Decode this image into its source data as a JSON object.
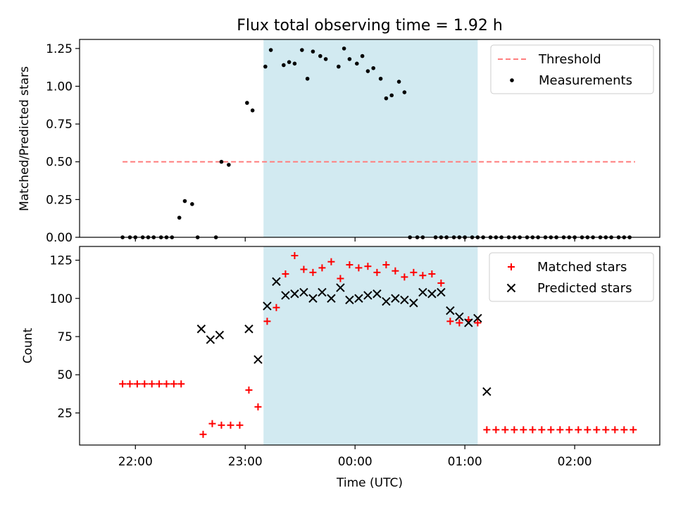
{
  "title": "Flux total observing time = 1.92 h",
  "colors": {
    "threshold": "#ff7f7f",
    "measurement": "#000000",
    "matched": "#ff0000",
    "predicted": "#000000",
    "observing_window": "#add8e6"
  },
  "chart_data": [
    {
      "type": "scatter",
      "ylabel": "Matched/Predicted stars",
      "ylim": [
        0,
        1.31
      ],
      "yticks": [
        0.0,
        0.25,
        0.5,
        0.75,
        1.0,
        1.25
      ],
      "ytick_labels": [
        "0.00",
        "0.25",
        "0.50",
        "0.75",
        "1.00",
        "1.25"
      ],
      "legend_position": "upper right",
      "shaded_x": [
        "23:10",
        "01:07"
      ],
      "threshold": {
        "name": "Threshold",
        "y": 0.5,
        "x": [
          "21:53",
          "02:33"
        ]
      },
      "series": [
        {
          "name": "Measurements",
          "marker": "dot",
          "x": [
            "21:53",
            "21:57",
            "22:00",
            "22:04",
            "22:07",
            "22:10",
            "22:14",
            "22:17",
            "22:20",
            "22:24",
            "22:27",
            "22:31",
            "22:34",
            "22:44",
            "22:47",
            "22:51",
            "23:01",
            "23:04",
            "23:11",
            "23:14",
            "23:21",
            "23:24",
            "23:27",
            "23:31",
            "23:34",
            "23:37",
            "23:41",
            "23:44",
            "23:51",
            "23:54",
            "23:57",
            "00:01",
            "00:04",
            "00:07",
            "00:10",
            "00:14",
            "00:17",
            "00:20",
            "00:24",
            "00:27",
            "00:30",
            "00:34",
            "00:37",
            "00:44",
            "00:47",
            "00:50",
            "00:54",
            "00:57",
            "01:00",
            "01:04",
            "01:07",
            "01:10",
            "01:14",
            "01:17",
            "01:20",
            "01:24",
            "01:27",
            "01:30",
            "01:34",
            "01:37",
            "01:40",
            "01:44",
            "01:47",
            "01:50",
            "01:54",
            "01:57",
            "02:00",
            "02:04",
            "02:07",
            "02:10",
            "02:14",
            "02:17",
            "02:20",
            "02:24",
            "02:27",
            "02:30"
          ],
          "y": [
            0,
            0,
            0,
            0,
            0,
            0,
            0,
            0,
            0,
            0.13,
            0.24,
            0.22,
            0,
            0,
            0.5,
            0.48,
            0.89,
            0.84,
            1.13,
            1.24,
            1.14,
            1.16,
            1.15,
            1.24,
            1.05,
            1.23,
            1.2,
            1.18,
            1.13,
            1.25,
            1.18,
            1.15,
            1.2,
            1.1,
            1.12,
            1.05,
            0.92,
            0.94,
            1.03,
            0.96,
            0,
            0,
            0,
            0,
            0,
            0,
            0,
            0,
            0,
            0,
            0,
            0,
            0,
            0,
            0,
            0,
            0,
            0,
            0,
            0,
            0,
            0,
            0,
            0,
            0,
            0,
            0,
            0,
            0,
            0,
            0,
            0,
            0,
            0,
            0,
            0
          ]
        }
      ]
    },
    {
      "type": "scatter",
      "xlabel": "Time (UTC)",
      "ylabel": "Count",
      "ylim": [
        4,
        134
      ],
      "yticks": [
        25,
        50,
        75,
        100,
        125
      ],
      "ytick_labels": [
        "25",
        "50",
        "75",
        "100",
        "125"
      ],
      "xticks": [
        "22:00",
        "23:00",
        "00:00",
        "01:00",
        "02:00"
      ],
      "legend_position": "upper right",
      "shaded_x": [
        "23:10",
        "01:07"
      ],
      "series": [
        {
          "name": "Matched stars",
          "marker": "plus",
          "x": [
            "21:53",
            "21:57",
            "22:01",
            "22:05",
            "22:09",
            "22:13",
            "22:17",
            "22:21",
            "22:25",
            "22:37",
            "22:42",
            "22:47",
            "22:52",
            "22:57",
            "23:02",
            "23:07",
            "23:12",
            "23:17",
            "23:22",
            "23:27",
            "23:32",
            "23:37",
            "23:42",
            "23:47",
            "23:52",
            "23:57",
            "00:02",
            "00:07",
            "00:12",
            "00:17",
            "00:22",
            "00:27",
            "00:32",
            "00:37",
            "00:42",
            "00:47",
            "00:52",
            "00:57",
            "01:02",
            "01:07",
            "01:12",
            "01:17",
            "01:22",
            "01:27",
            "01:32",
            "01:37",
            "01:42",
            "01:47",
            "01:52",
            "01:57",
            "02:02",
            "02:07",
            "02:12",
            "02:17",
            "02:22",
            "02:27",
            "02:32"
          ],
          "y": [
            44,
            44,
            44,
            44,
            44,
            44,
            44,
            44,
            44,
            11,
            18,
            17,
            17,
            17,
            40,
            29,
            85,
            94,
            116,
            128,
            119,
            117,
            120,
            124,
            113,
            122,
            120,
            121,
            117,
            122,
            118,
            114,
            117,
            115,
            116,
            110,
            85,
            84,
            86,
            84,
            14,
            14,
            14,
            14,
            14,
            14,
            14,
            14,
            14,
            14,
            14,
            14,
            14,
            14,
            14,
            14,
            14
          ]
        },
        {
          "name": "Predicted stars",
          "marker": "x",
          "x": [
            "22:36",
            "22:41",
            "22:46",
            "23:02",
            "23:07",
            "23:12",
            "23:17",
            "23:22",
            "23:27",
            "23:32",
            "23:37",
            "23:42",
            "23:47",
            "23:52",
            "23:57",
            "00:02",
            "00:07",
            "00:12",
            "00:17",
            "00:22",
            "00:27",
            "00:32",
            "00:37",
            "00:42",
            "00:47",
            "00:52",
            "00:57",
            "01:02",
            "01:07",
            "01:12"
          ],
          "y": [
            80,
            73,
            76,
            80,
            60,
            95,
            111,
            102,
            103,
            104,
            100,
            104,
            100,
            107,
            99,
            100,
            102,
            103,
            98,
            100,
            99,
            97,
            104,
            103,
            104,
            92,
            88,
            84,
            87,
            39
          ]
        }
      ]
    }
  ]
}
